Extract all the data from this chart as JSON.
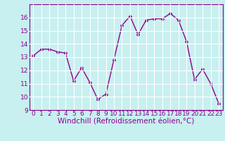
{
  "x": [
    0,
    1,
    2,
    3,
    4,
    5,
    6,
    7,
    8,
    9,
    10,
    11,
    12,
    13,
    14,
    15,
    16,
    17,
    18,
    19,
    20,
    21,
    22,
    23
  ],
  "y": [
    13.1,
    13.6,
    13.6,
    13.4,
    13.3,
    11.2,
    12.2,
    11.1,
    9.8,
    10.2,
    12.8,
    15.4,
    16.1,
    14.7,
    15.8,
    15.9,
    15.9,
    16.3,
    15.8,
    14.2,
    11.3,
    12.1,
    11.0,
    9.5
  ],
  "line_color": "#8b008b",
  "marker": "D",
  "marker_size": 2.5,
  "bg_color": "#c8f0f0",
  "grid_color": "#ffffff",
  "xlabel": "Windchill (Refroidissement éolien,°C)",
  "ylim": [
    9,
    17
  ],
  "xlim": [
    -0.5,
    23.5
  ],
  "yticks": [
    9,
    10,
    11,
    12,
    13,
    14,
    15,
    16
  ],
  "xticks": [
    0,
    1,
    2,
    3,
    4,
    5,
    6,
    7,
    8,
    9,
    10,
    11,
    12,
    13,
    14,
    15,
    16,
    17,
    18,
    19,
    20,
    21,
    22,
    23
  ],
  "tick_color": "#8b008b",
  "tick_label_color": "#8b008b",
  "xlabel_color": "#8b008b",
  "xlabel_fontsize": 7.5,
  "tick_fontsize": 6.5,
  "linewidth": 1.0,
  "spine_color": "#8b008b"
}
